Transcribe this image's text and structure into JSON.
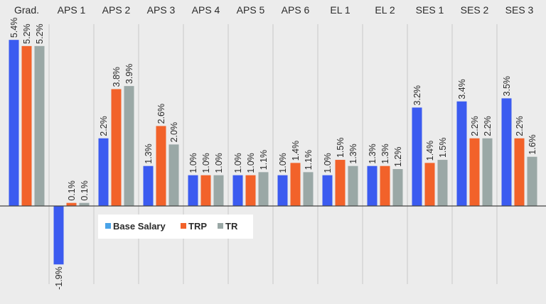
{
  "chart_data": {
    "type": "bar",
    "categories": [
      "Grad.",
      "APS 1",
      "APS 2",
      "APS 3",
      "APS 4",
      "APS 5",
      "APS 6",
      "EL 1",
      "EL 2",
      "SES 1",
      "SES 2",
      "SES 3"
    ],
    "series": [
      {
        "name": "Base Salary",
        "color": "#3b5bf0",
        "values": [
          5.4,
          -1.9,
          2.2,
          1.3,
          1.0,
          1.0,
          1.0,
          1.0,
          1.3,
          3.2,
          3.4,
          3.5
        ],
        "labels": [
          "5.4%",
          "-1.9%",
          "2.2%",
          "1.3%",
          "1.0%",
          "1.0%",
          "1.0%",
          "1.0%",
          "1.3%",
          "3.2%",
          "3.4%",
          "3.5%"
        ]
      },
      {
        "name": "TRP",
        "color": "#f2622a",
        "values": [
          5.2,
          0.1,
          3.8,
          2.6,
          1.0,
          1.0,
          1.4,
          1.5,
          1.3,
          1.4,
          2.2,
          2.2
        ],
        "labels": [
          "5.2%",
          "0.1%",
          "3.8%",
          "2.6%",
          "1.0%",
          "1.0%",
          "1.4%",
          "1.5%",
          "1.3%",
          "1.4%",
          "2.2%",
          "2.2%"
        ]
      },
      {
        "name": "TR",
        "color": "#9aa8a6",
        "values": [
          5.2,
          0.1,
          3.9,
          2.0,
          1.0,
          1.1,
          1.1,
          1.3,
          1.2,
          1.5,
          2.2,
          1.6
        ],
        "labels": [
          "5.2%",
          "0.1%",
          "3.9%",
          "2.0%",
          "1.0%",
          "1.1%",
          "1.1%",
          "1.3%",
          "1.2%",
          "1.5%",
          "2.2%",
          "1.6%"
        ]
      }
    ],
    "legend": {
      "position": "below-axis-left",
      "items": [
        {
          "label": "Base Salary",
          "color": "#4aa3e8"
        },
        {
          "label": "TRP",
          "color": "#f2622a"
        },
        {
          "label": "TR",
          "color": "#9aa8a6"
        }
      ]
    },
    "grid": "vertical-separators",
    "ylim": [
      -2.0,
      5.9
    ]
  }
}
